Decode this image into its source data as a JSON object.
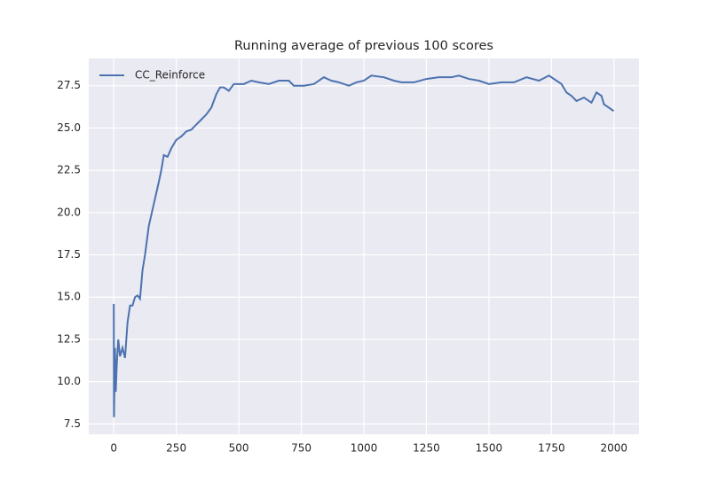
{
  "chart_data": {
    "type": "line",
    "title": "Running average of previous 100 scores",
    "x": [
      0,
      1,
      3,
      5,
      8,
      12,
      18,
      25,
      35,
      45,
      55,
      65,
      75,
      85,
      95,
      105,
      115,
      125,
      140,
      160,
      180,
      190,
      200,
      215,
      230,
      250,
      270,
      290,
      310,
      330,
      350,
      370,
      390,
      410,
      425,
      440,
      460,
      480,
      520,
      550,
      580,
      620,
      660,
      700,
      720,
      760,
      800,
      840,
      870,
      900,
      940,
      970,
      1000,
      1030,
      1080,
      1120,
      1150,
      1200,
      1250,
      1300,
      1350,
      1380,
      1420,
      1460,
      1500,
      1550,
      1600,
      1650,
      1700,
      1740,
      1770,
      1790,
      1810,
      1830,
      1850,
      1880,
      1910,
      1930,
      1950,
      1960,
      1980,
      1999
    ],
    "series": [
      {
        "name": "CC_Reinforce",
        "color": "#4c72b0",
        "values": [
          14.6,
          7.9,
          10.0,
          12.0,
          9.4,
          11.0,
          12.5,
          11.5,
          12.0,
          11.4,
          13.5,
          14.5,
          14.5,
          15.0,
          15.1,
          14.9,
          16.6,
          17.5,
          19.2,
          20.5,
          21.8,
          22.5,
          23.4,
          23.3,
          23.8,
          24.3,
          24.5,
          24.8,
          24.9,
          25.2,
          25.5,
          25.8,
          26.2,
          27.0,
          27.4,
          27.4,
          27.2,
          27.6,
          27.6,
          27.8,
          27.7,
          27.6,
          27.8,
          27.8,
          27.5,
          27.5,
          27.6,
          28.0,
          27.8,
          27.7,
          27.5,
          27.7,
          27.8,
          28.1,
          28.0,
          27.8,
          27.7,
          27.7,
          27.9,
          28.0,
          28.0,
          28.1,
          27.9,
          27.8,
          27.6,
          27.7,
          27.7,
          28.0,
          27.8,
          28.1,
          27.8,
          27.6,
          27.1,
          26.9,
          26.6,
          26.8,
          26.5,
          27.1,
          26.9,
          26.4,
          26.2,
          26.0
        ]
      }
    ],
    "xlim": [
      -100,
      2100
    ],
    "ylim": [
      6.89,
      29.11
    ],
    "xticks": [
      0,
      250,
      500,
      750,
      1000,
      1250,
      1500,
      1750,
      2000
    ],
    "yticks": [
      7.5,
      {
        "value": 10,
        "label": "10.0"
      },
      12.5,
      {
        "value": 15,
        "label": "15.0"
      },
      17.5,
      {
        "value": 20,
        "label": "20.0"
      },
      22.5,
      {
        "value": 25,
        "label": "25.0"
      },
      27.5
    ],
    "grid": true,
    "legend": "upper left"
  }
}
